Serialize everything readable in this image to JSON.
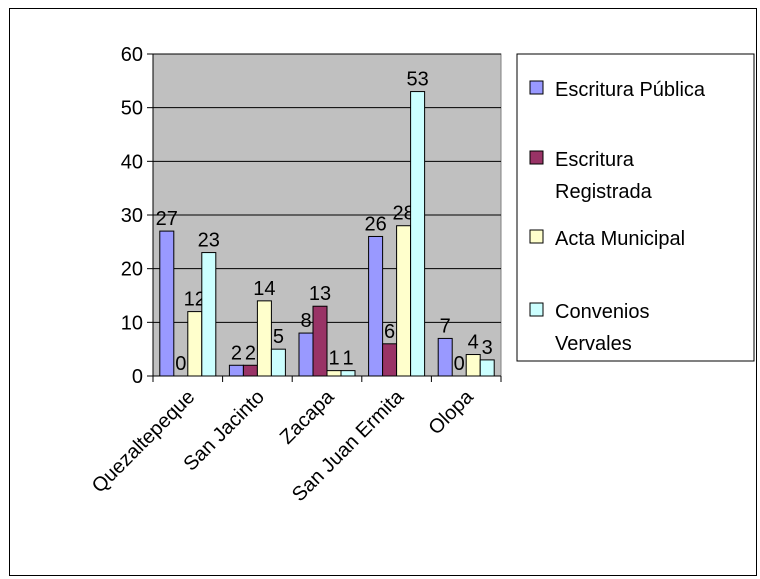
{
  "chart_data": {
    "type": "bar",
    "title": "",
    "xlabel": "",
    "ylabel": "",
    "ylim": [
      0,
      60
    ],
    "yticks": [
      "0",
      "10",
      "20",
      "30",
      "40",
      "50",
      "60"
    ],
    "categories": [
      "Quezaltepeque",
      "San Jacinto",
      "Zacapa",
      "San Juan Ermita",
      "Olopa"
    ],
    "series": [
      {
        "name": "Escritura Pública",
        "color": "#9999ff",
        "values": [
          27,
          2,
          8,
          26,
          7
        ]
      },
      {
        "name": "Escritura Registrada",
        "color": "#993366",
        "values": [
          0,
          2,
          13,
          6,
          0
        ]
      },
      {
        "name": "Acta Municipal",
        "color": "#ffffcc",
        "values": [
          12,
          14,
          1,
          28,
          4
        ]
      },
      {
        "name": "Convenios Vervales",
        "color": "#ccffff",
        "values": [
          23,
          5,
          1,
          53,
          3
        ]
      }
    ],
    "data_labels": [
      [
        "27",
        "0",
        "12",
        "23"
      ],
      [
        "2",
        "2",
        "14",
        "5"
      ],
      [
        "8",
        "13",
        "1",
        "1"
      ],
      [
        "26",
        "6",
        "28",
        "53"
      ],
      [
        "7",
        "0",
        "4",
        "3"
      ]
    ],
    "legend_position": "right",
    "legend_labels": [
      [
        "Escritura Pública"
      ],
      [
        "Escritura",
        "Registrada"
      ],
      [
        "Acta Municipal"
      ],
      [
        "Convenios",
        "Vervales"
      ]
    ],
    "plot_background": "#c0c0c0",
    "grid": true
  }
}
